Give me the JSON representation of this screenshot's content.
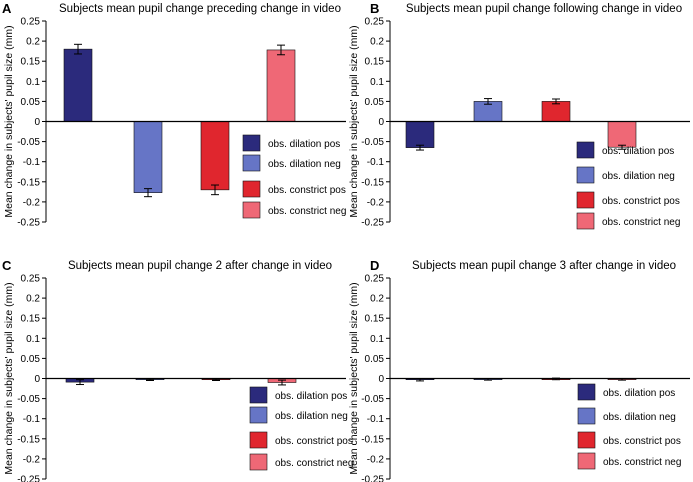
{
  "figure": {
    "legend_colors": {
      "obs_dilation_pos": "#2b2a7c",
      "obs_dilation_neg": "#6675c6",
      "obs_constrict_pos": "#e0262e",
      "obs_constrict_neg": "#ef6876"
    }
  },
  "chart_data": [
    {
      "panel": "A",
      "type": "bar",
      "title": "Subjects mean pupil change preceding change in video",
      "xlabel": "",
      "ylabel": "Mean change in subjects' pupil size (mm)",
      "ylim": [
        -0.25,
        0.25
      ],
      "yticks": [
        "0.25",
        "0.2",
        "0.15",
        "0.1",
        "0.05",
        "0",
        "-0.05",
        "-0.1",
        "-0.15",
        "-0.2",
        "-0.25"
      ],
      "categories": [
        "obs. dilation pos",
        "obs. dilation neg",
        "obs. constrict pos",
        "obs. constrict neg"
      ],
      "values": [
        0.18,
        -0.177,
        -0.17,
        0.178
      ],
      "errors": [
        0.012,
        0.01,
        0.012,
        0.012
      ],
      "legend": [
        "obs. dilation pos",
        "obs. dilation neg",
        "obs. constrict pos",
        "obs. constrict neg"
      ],
      "legend_position": "lower-right"
    },
    {
      "panel": "B",
      "type": "bar",
      "title": "Subjects mean pupil change following change in video",
      "xlabel": "",
      "ylabel": "Mean change in subjects' pupil size (mm)",
      "ylim": [
        -0.25,
        0.25
      ],
      "yticks": [
        "0.25",
        "0.2",
        "0.15",
        "0.1",
        "0.05",
        "0",
        "-0.05",
        "-0.1",
        "-0.15",
        "-0.2",
        "-0.25"
      ],
      "categories": [
        "obs. dilation pos",
        "obs. dilation neg",
        "obs. constrict pos",
        "obs. constrict neg"
      ],
      "values": [
        -0.065,
        0.05,
        0.05,
        -0.064
      ],
      "errors": [
        0.006,
        0.007,
        0.006,
        0.005
      ],
      "legend": [
        "obs. dilation pos",
        "obs. dilation neg",
        "obs. constrict pos",
        "obs. constrict neg"
      ],
      "legend_position": "lower-right"
    },
    {
      "panel": "C",
      "type": "bar",
      "title": "Subjects mean pupil change 2 after change in video",
      "xlabel": "",
      "ylabel": "Mean change in subjects' pupil size (mm)",
      "ylim": [
        -0.25,
        0.25
      ],
      "yticks": [
        "0.25",
        "0.2",
        "0.15",
        "0.1",
        "0.05",
        "0",
        "-0.05",
        "-0.1",
        "-0.15",
        "-0.2",
        "-0.25"
      ],
      "categories": [
        "obs. dilation pos",
        "obs. dilation neg",
        "obs. constrict pos",
        "obs. constrict neg"
      ],
      "values": [
        -0.009,
        -0.003,
        -0.003,
        -0.01
      ],
      "errors": [
        0.006,
        0.002,
        0.002,
        0.006
      ],
      "legend": [
        "obs. dilation pos",
        "obs. dilation neg",
        "obs. constrict pos",
        "obs. constrict neg"
      ],
      "legend_position": "lower-right"
    },
    {
      "panel": "D",
      "type": "bar",
      "title": "Subjects mean pupil change 3 after change in video",
      "xlabel": "",
      "ylabel": "Mean change in subjects' pupil size (mm)",
      "ylim": [
        -0.25,
        0.25
      ],
      "yticks": [
        "0.25",
        "0.2",
        "0.15",
        "0.1",
        "0.05",
        "0",
        "-0.05",
        "-0.1",
        "-0.15",
        "-0.2",
        "-0.25"
      ],
      "categories": [
        "obs. dilation pos",
        "obs. dilation neg",
        "obs. constrict pos",
        "obs. constrict neg"
      ],
      "values": [
        -0.003,
        -0.002,
        -0.001,
        -0.002
      ],
      "errors": [
        0.003,
        0.002,
        0.002,
        0.002
      ],
      "legend": [
        "obs. dilation pos",
        "obs. dilation neg",
        "obs. constrict pos",
        "obs. constrict neg"
      ],
      "legend_position": "lower-right"
    }
  ]
}
